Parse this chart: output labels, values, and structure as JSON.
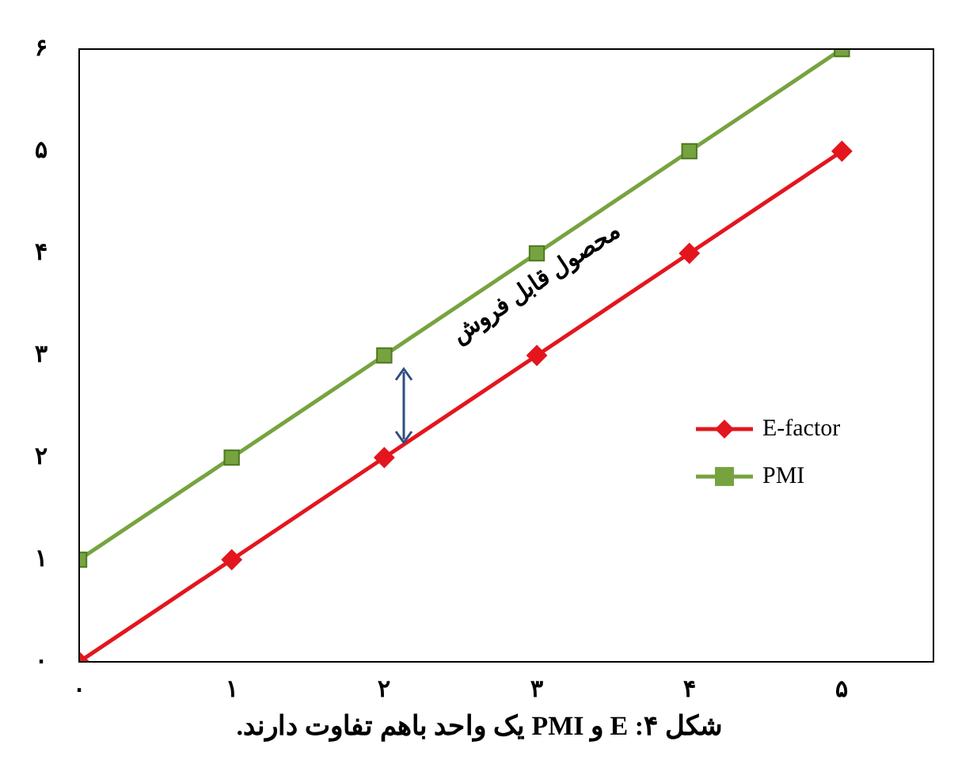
{
  "chart_data": {
    "type": "line",
    "x": [
      0,
      1,
      2,
      3,
      4,
      5
    ],
    "series": [
      {
        "name": "E-factor",
        "color": "#e3161e",
        "marker": "diamond",
        "values": [
          0,
          1,
          2,
          3,
          4,
          5
        ]
      },
      {
        "name": "PMI",
        "color": "#76a33f",
        "marker": "square",
        "values": [
          1,
          2,
          3,
          4,
          5,
          6
        ]
      }
    ],
    "xlim": [
      0,
      5.6
    ],
    "xticks": [
      {
        "value": 0,
        "label": "۰"
      },
      {
        "value": 1,
        "label": "۱"
      },
      {
        "value": 2,
        "label": "۲"
      },
      {
        "value": 3,
        "label": "۳"
      },
      {
        "value": 4,
        "label": "۴"
      },
      {
        "value": 5,
        "label": "۵"
      }
    ],
    "ylim": [
      0,
      6
    ],
    "yticks": [
      {
        "value": 0,
        "label": "۰"
      },
      {
        "value": 1,
        "label": "۱"
      },
      {
        "value": 2,
        "label": "۲"
      },
      {
        "value": 3,
        "label": "۳"
      },
      {
        "value": 4,
        "label": "۴"
      },
      {
        "value": 5,
        "label": "۵"
      },
      {
        "value": 6,
        "label": "۶"
      }
    ],
    "grid": false,
    "legend": "right",
    "line_style": "solid",
    "annotations": [
      "محصول قابل فروش",
      "شکل ۴: E و PMI یک واحد باهم تفاوت دارند."
    ]
  }
}
